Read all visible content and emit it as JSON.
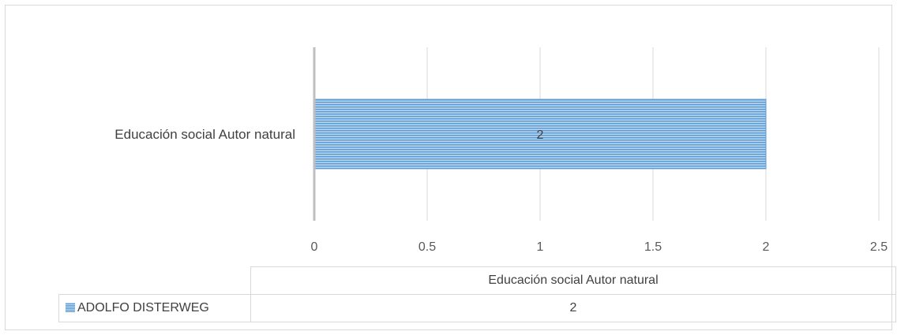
{
  "chart_data": {
    "type": "bar",
    "orientation": "horizontal",
    "categories": [
      "Educación social Autor natural"
    ],
    "series": [
      {
        "name": "ADOLFO DISTERWEG",
        "values": [
          2
        ],
        "color": "#5b9bd5",
        "pattern": "horizontal-stripes"
      }
    ],
    "data_labels": [
      "2"
    ],
    "x_ticks": [
      "0",
      "0.5",
      "1",
      "1.5",
      "2",
      "2.5"
    ],
    "xlim": [
      0,
      2.5
    ],
    "grid": true,
    "legend": "data-table",
    "data_table": {
      "header": "Educación social Autor natural",
      "rows": [
        {
          "name": "ADOLFO DISTERWEG",
          "value": "2"
        }
      ]
    }
  }
}
